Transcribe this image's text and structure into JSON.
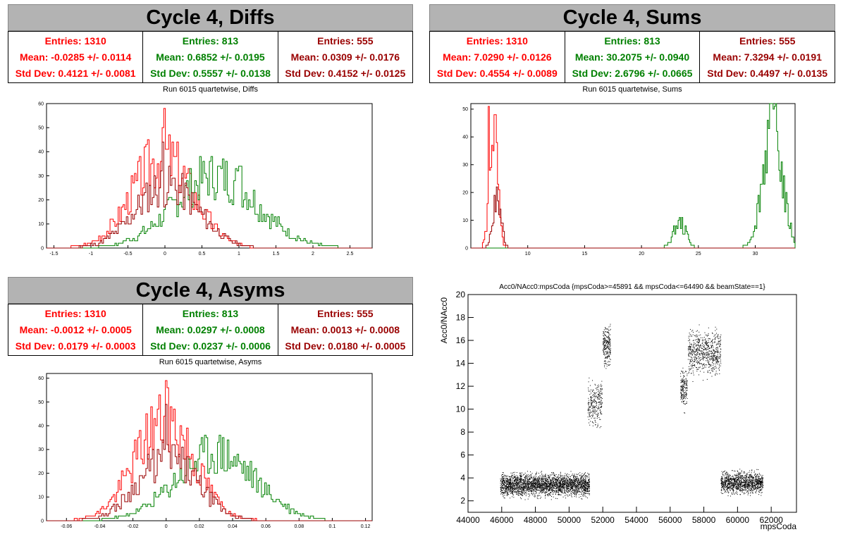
{
  "colors": {
    "red": "#ff0000",
    "green": "#008000",
    "darkred": "#990000",
    "black": "#000000",
    "header_bg": "#b3b3b3"
  },
  "panels": {
    "diffs": {
      "title": "Cycle 4, Diffs",
      "subtitle": "Run 6015 quartetwise, Diffs",
      "stats": [
        {
          "entries": "Entries: 1310",
          "mean": "Mean: -0.0285 +/- 0.0114",
          "std": "Std Dev: 0.4121 +/- 0.0081",
          "color": "#ff0000"
        },
        {
          "entries": "Entries: 813",
          "mean": "Mean: 0.6852 +/- 0.0195",
          "std": "Std Dev: 0.5557 +/- 0.0138",
          "color": "#008000"
        },
        {
          "entries": "Entries: 555",
          "mean": "Mean: 0.0309 +/- 0.0176",
          "std": "Std Dev: 0.4152 +/- 0.0125",
          "color": "#990000"
        }
      ]
    },
    "sums": {
      "title": "Cycle 4, Sums",
      "subtitle": "Run 6015 quartetwise, Sums",
      "stats": [
        {
          "entries": "Entries: 1310",
          "mean": "Mean: 7.0290 +/- 0.0126",
          "std": "Std Dev: 0.4554 +/- 0.0089",
          "color": "#ff0000"
        },
        {
          "entries": "Entries: 813",
          "mean": "Mean: 30.2075 +/- 0.0940",
          "std": "Std Dev: 2.6796 +/- 0.0665",
          "color": "#008000"
        },
        {
          "entries": "Entries: 555",
          "mean": "Mean: 7.3294 +/- 0.0191",
          "std": "Std Dev: 0.4497 +/- 0.0135",
          "color": "#990000"
        }
      ]
    },
    "asyms": {
      "title": "Cycle 4, Asyms",
      "subtitle": "Run 6015 quartetwise, Asyms",
      "stats": [
        {
          "entries": "Entries: 1310",
          "mean": "Mean: -0.0012 +/- 0.0005",
          "std": "Std Dev: 0.0179 +/- 0.0003",
          "color": "#ff0000"
        },
        {
          "entries": "Entries: 813",
          "mean": "Mean: 0.0297 +/- 0.0008",
          "std": "Std Dev: 0.0237 +/- 0.0006",
          "color": "#008000"
        },
        {
          "entries": "Entries: 555",
          "mean": "Mean: 0.0013 +/- 0.0008",
          "std": "Std Dev: 0.0180 +/- 0.0005",
          "color": "#990000"
        }
      ]
    }
  },
  "chart_data": [
    {
      "type": "line",
      "id": "diffs",
      "xlim": [
        -1.6,
        2.8
      ],
      "ylim": [
        0,
        60
      ],
      "xticks": [
        -1.5,
        -1,
        -0.5,
        0,
        0.5,
        1,
        1.5,
        2,
        2.5
      ],
      "xtick_labels": [
        "-1.5",
        "-1",
        "-0.5",
        "0",
        "0.5",
        "1",
        "1.5",
        "2",
        "2.5"
      ],
      "yticks": [
        0,
        10,
        20,
        30,
        40,
        50,
        60
      ],
      "ytick_labels": [
        "0",
        "10",
        "20",
        "30",
        "40",
        "50",
        "60"
      ],
      "series": [
        {
          "color": "#ff0000",
          "shape": "gauss",
          "mean": -0.03,
          "sigma": 0.41,
          "peak": 38,
          "spikes": [
            [
              0.0,
              58
            ]
          ],
          "seed": 3
        },
        {
          "color": "#008000",
          "shape": "gauss",
          "mean": 0.69,
          "sigma": 0.56,
          "peak": 30,
          "spikes": [
            [
              1.02,
              34
            ]
          ],
          "seed": 7
        },
        {
          "color": "#990000",
          "shape": "gauss",
          "mean": 0.03,
          "sigma": 0.42,
          "peak": 26,
          "spikes": [
            [
              -0.02,
              44
            ]
          ],
          "seed": 11
        }
      ]
    },
    {
      "type": "line",
      "id": "sums",
      "xlim": [
        5,
        33.5
      ],
      "ylim": [
        0,
        52
      ],
      "xticks": [
        10,
        15,
        20,
        25,
        30
      ],
      "xtick_labels": [
        "10",
        "15",
        "20",
        "25",
        "30"
      ],
      "yticks": [
        0,
        10,
        20,
        30,
        40,
        50
      ],
      "ytick_labels": [
        "0",
        "10",
        "20",
        "30",
        "40",
        "50"
      ],
      "series": [
        {
          "color": "#ff0000",
          "shape": "gauss",
          "mean": 7.0,
          "sigma": 0.35,
          "peak": 44,
          "spikes": [
            [
              6.6,
              51
            ]
          ],
          "seed": 5
        },
        {
          "color": "#008000",
          "shape": "bimodal",
          "modes": [
            [
              23.4,
              0.55,
              9
            ],
            [
              31.5,
              0.85,
              44
            ]
          ],
          "spikes": [
            [
              31.7,
              51
            ]
          ],
          "seed": 13
        },
        {
          "color": "#990000",
          "shape": "gauss",
          "mean": 7.3,
          "sigma": 0.38,
          "peak": 18,
          "spikes": [],
          "seed": 17
        }
      ]
    },
    {
      "type": "line",
      "id": "asyms",
      "xlim": [
        -0.072,
        0.124
      ],
      "ylim": [
        0,
        62
      ],
      "xticks": [
        -0.06,
        -0.04,
        -0.02,
        0,
        0.02,
        0.04,
        0.06,
        0.08,
        0.1,
        0.12
      ],
      "xtick_labels": [
        "-0.06",
        "-0.04",
        "-0.02",
        "0",
        "0.02",
        "0.04",
        "0.06",
        "0.08",
        "0.1",
        "0.12"
      ],
      "yticks": [
        0,
        10,
        20,
        30,
        40,
        50,
        60
      ],
      "ytick_labels": [
        "0",
        "10",
        "20",
        "30",
        "40",
        "50",
        "60"
      ],
      "series": [
        {
          "color": "#ff0000",
          "shape": "gauss",
          "mean": -0.001,
          "sigma": 0.018,
          "peak": 42,
          "spikes": [
            [
              0.0,
              59
            ]
          ],
          "seed": 19
        },
        {
          "color": "#008000",
          "shape": "gauss",
          "mean": 0.03,
          "sigma": 0.024,
          "peak": 28,
          "spikes": [
            [
              0.034,
              35
            ]
          ],
          "seed": 23
        },
        {
          "color": "#990000",
          "shape": "gauss",
          "mean": 0.001,
          "sigma": 0.018,
          "peak": 26,
          "spikes": [
            [
              0.0,
              49
            ]
          ],
          "seed": 29
        }
      ]
    },
    {
      "type": "scatter",
      "id": "acc0",
      "title": "Acc0/NAcc0:mpsCoda {mpsCoda>=45891 && mpsCoda<=64490 && beamState==1}",
      "xlabel": "mpsCoda",
      "ylabel": "Acc0/NAcc0",
      "xlim": [
        44000,
        63500
      ],
      "ylim": [
        1,
        20
      ],
      "xticks": [
        44000,
        46000,
        48000,
        50000,
        52000,
        54000,
        56000,
        58000,
        60000,
        62000
      ],
      "xtick_labels": [
        "44000",
        "46000",
        "48000",
        "50000",
        "52000",
        "54000",
        "56000",
        "58000",
        "60000",
        "62000"
      ],
      "yticks": [
        2,
        4,
        6,
        8,
        10,
        12,
        14,
        16,
        18,
        20
      ],
      "ytick_labels": [
        "2",
        "4",
        "6",
        "8",
        "10",
        "12",
        "14",
        "16",
        "18",
        "20"
      ],
      "clusters": [
        {
          "x": [
            45900,
            51200
          ],
          "y_center": 3.4,
          "y_spread": 0.45,
          "n": 2600
        },
        {
          "x": [
            51100,
            51950
          ],
          "y_center": 10.6,
          "y_spread": 0.9,
          "n": 260
        },
        {
          "x": [
            52000,
            52450
          ],
          "y_center": 15.6,
          "y_spread": 0.8,
          "n": 230
        },
        {
          "x": [
            56600,
            57000
          ],
          "y_center": 11.8,
          "y_spread": 0.8,
          "n": 170
        },
        {
          "x": [
            57050,
            59000
          ],
          "y_center": 15.0,
          "y_spread": 0.9,
          "n": 650
        },
        {
          "x": [
            59000,
            61500
          ],
          "y_center": 3.6,
          "y_spread": 0.45,
          "n": 1100
        }
      ]
    }
  ]
}
